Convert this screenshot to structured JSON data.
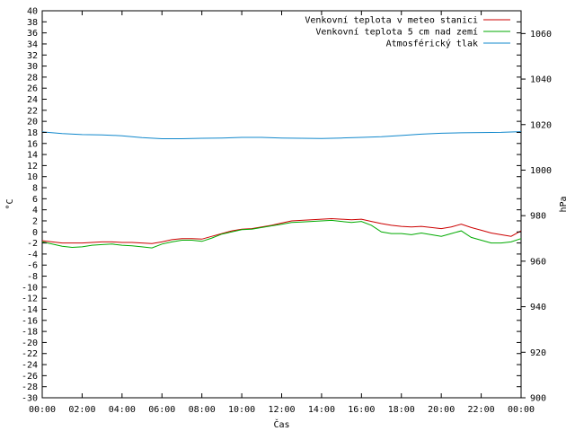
{
  "chart_data": {
    "type": "line",
    "xlabel": "Čas",
    "ylabel": "°C",
    "y2label": "hPa",
    "x_ticks": [
      "00:00",
      "02:00",
      "04:00",
      "06:00",
      "08:00",
      "10:00",
      "12:00",
      "14:00",
      "16:00",
      "18:00",
      "20:00",
      "22:00",
      "00:00"
    ],
    "x_hours": [
      0,
      24
    ],
    "ylim": [
      -30,
      40
    ],
    "y_step": 2,
    "y2lim": [
      900,
      1070
    ],
    "y2_ticks": [
      900,
      920,
      940,
      960,
      980,
      1000,
      1020,
      1040,
      1060
    ],
    "grid": false,
    "legend_position": "top-right",
    "series": [
      {
        "name": "Venkovní teplota v meteo stanici",
        "axis": "y",
        "color": "#cc0000",
        "x": [
          0,
          0.5,
          1,
          1.5,
          2,
          2.5,
          3,
          3.5,
          4,
          4.5,
          5,
          5.5,
          6,
          6.5,
          7,
          7.5,
          8,
          8.5,
          9,
          9.5,
          10,
          10.5,
          11,
          11.5,
          12,
          12.5,
          13,
          13.5,
          14,
          14.5,
          15,
          15.5,
          16,
          16.5,
          17,
          17.5,
          18,
          18.5,
          19,
          19.5,
          20,
          20.5,
          21,
          21.5,
          22,
          22.5,
          23,
          23.5,
          24
        ],
        "y": [
          -1.6,
          -1.8,
          -2.0,
          -2.0,
          -2.0,
          -1.9,
          -1.8,
          -1.8,
          -1.9,
          -1.9,
          -2.0,
          -2.1,
          -1.8,
          -1.4,
          -1.2,
          -1.2,
          -1.3,
          -0.8,
          -0.3,
          0.2,
          0.5,
          0.6,
          0.9,
          1.2,
          1.6,
          2.0,
          2.1,
          2.2,
          2.3,
          2.4,
          2.3,
          2.2,
          2.3,
          1.9,
          1.5,
          1.2,
          1.0,
          0.9,
          1.0,
          0.8,
          0.6,
          0.9,
          1.4,
          0.8,
          0.3,
          -0.2,
          -0.5,
          -0.8,
          0.2
        ]
      },
      {
        "name": "Venkovní teplota 5 cm nad zemí",
        "axis": "y",
        "color": "#00aa00",
        "x": [
          0,
          0.5,
          1,
          1.5,
          2,
          2.5,
          3,
          3.5,
          4,
          4.5,
          5,
          5.5,
          6,
          6.5,
          7,
          7.5,
          8,
          8.5,
          9,
          9.5,
          10,
          10.5,
          11,
          11.5,
          12,
          12.5,
          13,
          13.5,
          14,
          14.5,
          15,
          15.5,
          16,
          16.5,
          17,
          17.5,
          18,
          18.5,
          19,
          19.5,
          20,
          20.5,
          21,
          21.5,
          22,
          22.5,
          23,
          23.5,
          24
        ],
        "y": [
          -1.8,
          -2.2,
          -2.6,
          -2.8,
          -2.7,
          -2.4,
          -2.3,
          -2.2,
          -2.4,
          -2.5,
          -2.7,
          -2.9,
          -2.2,
          -1.8,
          -1.5,
          -1.5,
          -1.7,
          -1.1,
          -0.4,
          0.0,
          0.4,
          0.5,
          0.8,
          1.1,
          1.4,
          1.7,
          1.8,
          1.9,
          2.0,
          2.1,
          1.9,
          1.7,
          1.9,
          1.2,
          0.0,
          -0.3,
          -0.3,
          -0.5,
          -0.2,
          -0.5,
          -0.8,
          -0.3,
          0.2,
          -1.0,
          -1.5,
          -2.0,
          -2.0,
          -1.8,
          -1.2
        ]
      },
      {
        "name": "Atmosférický tlak",
        "axis": "y2",
        "color": "#1188cc",
        "x": [
          0,
          1,
          2,
          3,
          4,
          5,
          6,
          7,
          8,
          9,
          10,
          11,
          12,
          13,
          14,
          15,
          16,
          17,
          18,
          19,
          20,
          21,
          22,
          23,
          24
        ],
        "y": [
          1016.8,
          1016.1,
          1015.6,
          1015.5,
          1015.1,
          1014.3,
          1013.8,
          1013.8,
          1014.0,
          1014.1,
          1014.4,
          1014.4,
          1014.1,
          1014.0,
          1013.9,
          1014.1,
          1014.4,
          1014.7,
          1015.2,
          1015.8,
          1016.2,
          1016.4,
          1016.5,
          1016.6,
          1016.9
        ]
      }
    ]
  }
}
